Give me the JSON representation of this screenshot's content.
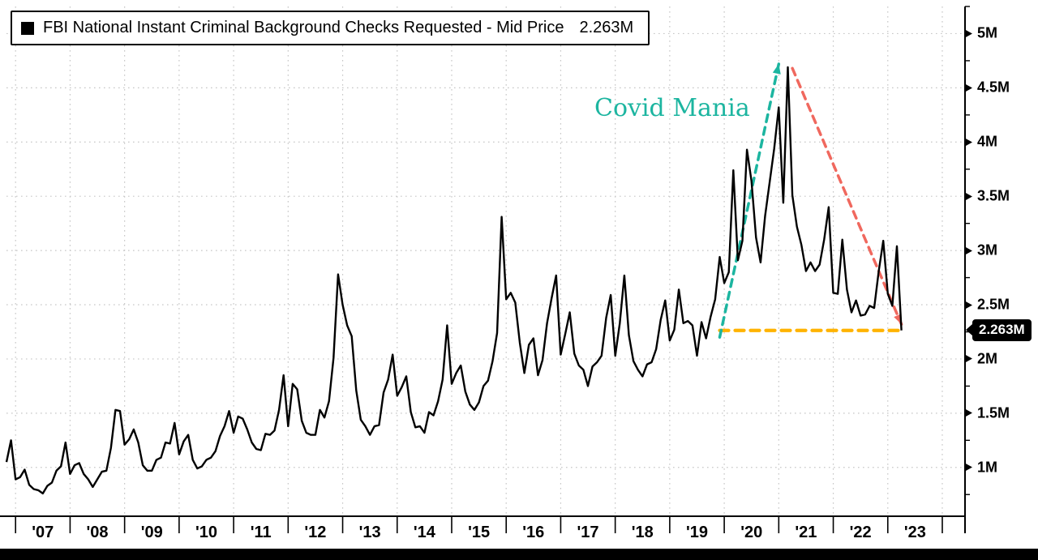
{
  "legend": {
    "label": "FBI National Instant Criminal Background Checks Requested - Mid Price",
    "value": "2.263M",
    "marker_color": "#000000"
  },
  "annotations": {
    "covid_mania": {
      "text": "Covid Mania",
      "color": "#1cb5a0"
    },
    "up_arrow": {
      "color": "#1cb5a0",
      "from": {
        "month": "2019-12",
        "value": 2.2
      },
      "to": {
        "month": "2021-01",
        "value": 4.72
      }
    },
    "down_arrow": {
      "color": "#f0685e",
      "from": {
        "month": "2021-04",
        "value": 4.68
      },
      "to": {
        "month": "2023-04",
        "value": 2.32
      }
    },
    "price_line": {
      "color": "#ffb300",
      "value": 2.263,
      "from_month": "2019-12",
      "to_month": "2023-04"
    }
  },
  "chart_data": {
    "type": "line",
    "title": "FBI National Instant Criminal Background Checks Requested - Mid Price 2.263M",
    "series_name": "FBI National Instant Criminal Background Checks Requested",
    "unit": "millions of checks per month",
    "line_color": "#000000",
    "grid": "dotted",
    "legend_position": "top-left",
    "y_axis_side": "right",
    "last_price": 2.263,
    "last_price_label": "2.263M",
    "x_start_month": "2006-11",
    "x_end_month": "2023-04",
    "x_domain_end_month": "2024-06",
    "x_tick_labels": [
      "'07",
      "'08",
      "'09",
      "'10",
      "'11",
      "'12",
      "'13",
      "'14",
      "'15",
      "'16",
      "'17",
      "'18",
      "'19",
      "'20",
      "'21",
      "'22",
      "'23"
    ],
    "y_tick_labels": [
      "1M",
      "1.5M",
      "2M",
      "2.5M",
      "3M",
      "3.5M",
      "4M",
      "4.5M",
      "5M"
    ],
    "y_tick_values": [
      1,
      1.5,
      2,
      2.5,
      3,
      3.5,
      4,
      4.5,
      5
    ],
    "ylim": [
      0.55,
      5.25
    ],
    "values_millions": [
      1.05,
      1.25,
      0.89,
      0.91,
      0.98,
      0.84,
      0.8,
      0.79,
      0.76,
      0.83,
      0.86,
      0.97,
      1.01,
      1.23,
      0.94,
      1.02,
      1.04,
      0.94,
      0.89,
      0.82,
      0.89,
      0.96,
      0.97,
      1.18,
      1.53,
      1.52,
      1.21,
      1.26,
      1.35,
      1.23,
      1.02,
      0.97,
      0.97,
      1.07,
      1.09,
      1.23,
      1.22,
      1.41,
      1.12,
      1.24,
      1.3,
      1.07,
      0.99,
      1.01,
      1.07,
      1.09,
      1.15,
      1.29,
      1.38,
      1.52,
      1.32,
      1.47,
      1.45,
      1.35,
      1.23,
      1.17,
      1.16,
      1.31,
      1.3,
      1.34,
      1.53,
      1.85,
      1.38,
      1.77,
      1.72,
      1.43,
      1.32,
      1.3,
      1.3,
      1.53,
      1.46,
      1.61,
      2.01,
      2.78,
      2.5,
      2.31,
      2.21,
      1.71,
      1.44,
      1.38,
      1.3,
      1.38,
      1.39,
      1.69,
      1.81,
      2.04,
      1.66,
      1.74,
      1.84,
      1.51,
      1.37,
      1.38,
      1.32,
      1.51,
      1.48,
      1.61,
      1.81,
      2.31,
      1.77,
      1.87,
      1.94,
      1.7,
      1.58,
      1.53,
      1.6,
      1.75,
      1.8,
      1.98,
      2.24,
      3.31,
      2.55,
      2.61,
      2.52,
      2.15,
      1.87,
      2.13,
      2.19,
      1.85,
      1.99,
      2.33,
      2.56,
      2.77,
      2.04,
      2.23,
      2.43,
      2.05,
      1.94,
      1.9,
      1.75,
      1.93,
      1.97,
      2.03,
      2.38,
      2.59,
      2.03,
      2.33,
      2.77,
      2.22,
      1.98,
      1.9,
      1.84,
      1.95,
      1.97,
      2.09,
      2.36,
      2.54,
      2.17,
      2.27,
      2.64,
      2.33,
      2.35,
      2.31,
      2.03,
      2.34,
      2.19,
      2.39,
      2.55,
      2.94,
      2.7,
      2.8,
      3.74,
      2.91,
      3.09,
      3.93,
      3.64,
      3.12,
      2.89,
      3.32,
      3.63,
      3.94,
      4.32,
      3.44,
      4.69,
      3.51,
      3.22,
      3.05,
      2.81,
      2.89,
      2.81,
      2.87,
      3.1,
      3.4,
      2.61,
      2.6,
      3.1,
      2.64,
      2.43,
      2.54,
      2.4,
      2.41,
      2.49,
      2.47,
      2.81,
      3.09,
      2.6,
      2.49,
      3.04,
      2.263
    ]
  }
}
